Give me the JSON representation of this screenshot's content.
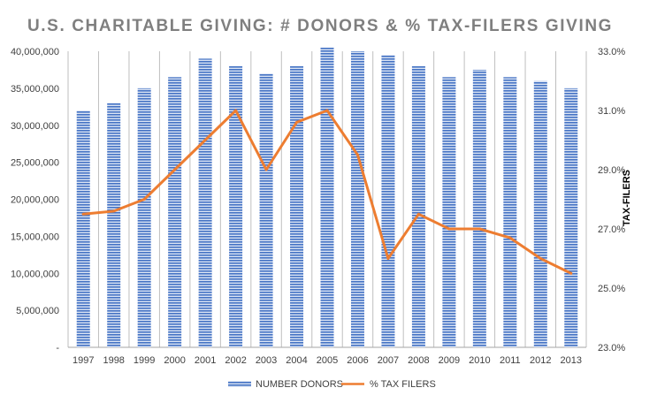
{
  "chart_data": {
    "type": "bar",
    "title": "U.S. CHARITABLE GIVING: # DONORS & % TAX-FILERS GIVING",
    "y2label": "TAX-FILERS",
    "categories": [
      "1997",
      "1998",
      "1999",
      "2000",
      "2001",
      "2002",
      "2003",
      "2004",
      "2005",
      "2006",
      "2007",
      "2008",
      "2009",
      "2010",
      "2011",
      "2012",
      "2013"
    ],
    "series": [
      {
        "name": "NUMBER DONORS",
        "type": "bar",
        "axis": "left",
        "color": "#4472c4",
        "values": [
          32000000,
          33000000,
          35000000,
          36500000,
          39000000,
          38000000,
          37000000,
          38000000,
          40500000,
          40000000,
          39500000,
          38000000,
          36500000,
          37500000,
          36500000,
          36000000,
          35000000
        ]
      },
      {
        "name": "% TAX FILERS",
        "type": "line",
        "axis": "right",
        "color": "#ed7d31",
        "values": [
          27.5,
          27.6,
          28.0,
          29.0,
          30.0,
          31.0,
          29.0,
          30.6,
          31.0,
          29.5,
          26.0,
          27.5,
          27.0,
          27.0,
          26.7,
          26.0,
          25.5
        ]
      }
    ],
    "ylim": [
      0,
      40000000
    ],
    "y2lim": [
      23,
      33
    ],
    "y_ticks": [
      "-",
      "5,000,000",
      "10,000,000",
      "15,000,000",
      "20,000,000",
      "25,000,000",
      "30,000,000",
      "35,000,000",
      "40,000,000"
    ],
    "y2_ticks": [
      "23.0%",
      "25.0%",
      "27.0%",
      "29.0%",
      "31.0%",
      "33.0%"
    ],
    "grid": "vertical",
    "legend_position": "bottom"
  }
}
